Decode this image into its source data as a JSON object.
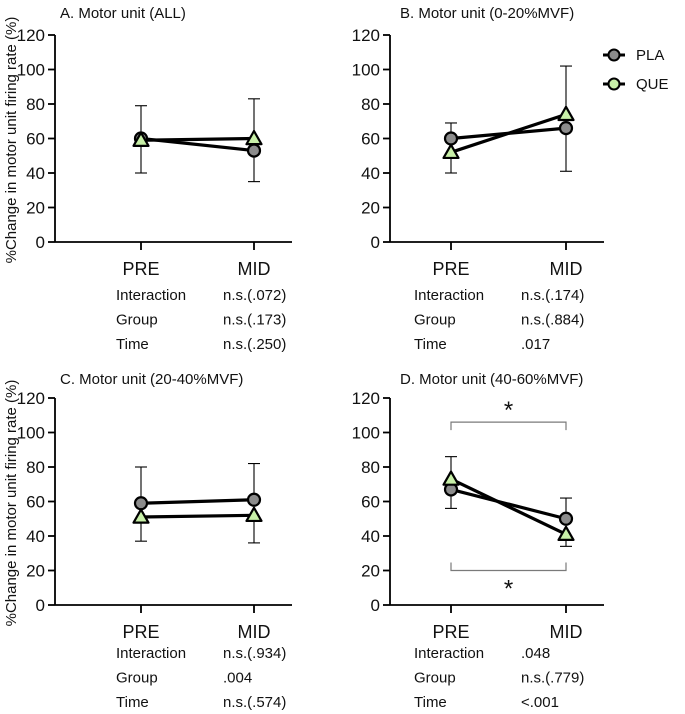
{
  "y_axis_label": "%Change in motor unit firing rate (%)",
  "legend": [
    {
      "name": "PLA",
      "marker": "circle",
      "fill": "#8c8c8c"
    },
    {
      "name": "QUE",
      "marker": "triangle",
      "fill": "#c8f0a8"
    }
  ],
  "colors": {
    "line": "#000000",
    "pla_fill": "#8c8c8c",
    "que_fill": "#c8f0a8",
    "bracket": "#7a7a7a"
  },
  "stat_labels": [
    "Interaction",
    "Group",
    "Time"
  ],
  "chart_data": [
    {
      "type": "line",
      "title": "A. Motor unit (ALL)",
      "categories": [
        "PRE",
        "MID"
      ],
      "ylim": [
        0,
        120
      ],
      "yticks": [
        0,
        20,
        40,
        60,
        80,
        100,
        120
      ],
      "series": [
        {
          "name": "PLA",
          "values": [
            60,
            53
          ],
          "err_upper": [
            79,
            83
          ],
          "err_lower": [
            null,
            35
          ]
        },
        {
          "name": "QUE",
          "values": [
            59,
            60
          ],
          "err_upper": [
            null,
            null
          ],
          "err_lower": [
            40,
            null
          ]
        }
      ],
      "stats": [
        {
          "label": "Interaction",
          "value": "n.s.(.072)"
        },
        {
          "label": "Group",
          "value": "n.s.(.173)"
        },
        {
          "label": "Time",
          "value": "n.s.(.250)"
        }
      ],
      "annotations": []
    },
    {
      "type": "line",
      "title": "B. Motor unit (0-20%MVF)",
      "categories": [
        "PRE",
        "MID"
      ],
      "ylim": [
        0,
        120
      ],
      "yticks": [
        0,
        20,
        40,
        60,
        80,
        100,
        120
      ],
      "series": [
        {
          "name": "PLA",
          "values": [
            60,
            66
          ],
          "err_upper": [
            69,
            null
          ],
          "err_lower": [
            null,
            41
          ]
        },
        {
          "name": "QUE",
          "values": [
            52,
            74
          ],
          "err_upper": [
            null,
            102
          ],
          "err_lower": [
            40,
            null
          ]
        }
      ],
      "stats": [
        {
          "label": "Interaction",
          "value": "n.s.(.174)"
        },
        {
          "label": "Group",
          "value": "n.s.(.884)"
        },
        {
          "label": "Time",
          "value": ".017"
        }
      ],
      "annotations": []
    },
    {
      "type": "line",
      "title": "C. Motor unit (20-40%MVF)",
      "categories": [
        "PRE",
        "MID"
      ],
      "ylim": [
        0,
        120
      ],
      "yticks": [
        0,
        20,
        40,
        60,
        80,
        100,
        120
      ],
      "series": [
        {
          "name": "PLA",
          "values": [
            59,
            61
          ],
          "err_upper": [
            80,
            82
          ],
          "err_lower": [
            null,
            null
          ]
        },
        {
          "name": "QUE",
          "values": [
            51,
            52
          ],
          "err_upper": [
            null,
            null
          ],
          "err_lower": [
            37,
            36
          ]
        }
      ],
      "stats": [
        {
          "label": "Interaction",
          "value": "n.s.(.934)"
        },
        {
          "label": "Group",
          "value": ".004"
        },
        {
          "label": "Time",
          "value": "n.s.(.574)"
        }
      ],
      "annotations": []
    },
    {
      "type": "line",
      "title": "D. Motor unit (40-60%MVF)",
      "categories": [
        "PRE",
        "MID"
      ],
      "ylim": [
        0,
        120
      ],
      "yticks": [
        0,
        20,
        40,
        60,
        80,
        100,
        120
      ],
      "series": [
        {
          "name": "PLA",
          "values": [
            67,
            50
          ],
          "err_upper": [
            null,
            62
          ],
          "err_lower": [
            56,
            null
          ]
        },
        {
          "name": "QUE",
          "values": [
            73,
            41
          ],
          "err_upper": [
            86,
            null
          ],
          "err_lower": [
            null,
            34
          ]
        }
      ],
      "stats": [
        {
          "label": "Interaction",
          "value": ".048"
        },
        {
          "label": "Group",
          "value": "n.s.(.779)"
        },
        {
          "label": "Time",
          "value": "<.001"
        }
      ],
      "annotations": [
        {
          "type": "bracket",
          "from": "PRE",
          "to": "MID",
          "y": 106,
          "text": "*",
          "placement": "above"
        },
        {
          "type": "bracket",
          "from": "PRE",
          "to": "MID",
          "y": 20,
          "text": "*",
          "placement": "below"
        }
      ]
    }
  ]
}
